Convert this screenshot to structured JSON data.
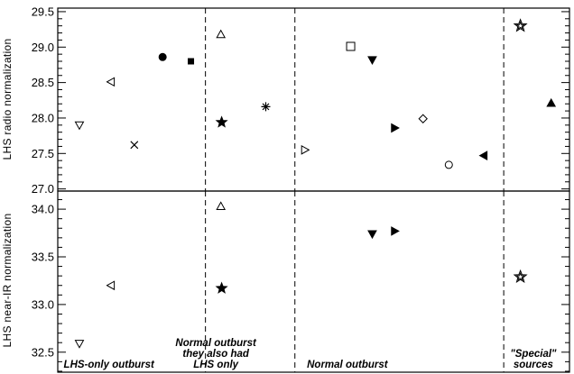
{
  "chart_data": [
    {
      "type": "scatter",
      "ylabel": "LHS radio normalization",
      "ylim": [
        26.97,
        29.55
      ],
      "yticks": [
        27.0,
        27.5,
        28.0,
        28.5,
        29.0,
        29.5
      ],
      "ytick_labels": [
        "27.0",
        "27.5",
        "28.0",
        "28.5",
        "29.0",
        "29.5"
      ],
      "xlim": [
        0,
        1
      ],
      "region_boundaries": [
        0.2886,
        0.4634,
        0.8715
      ],
      "points": [
        {
          "x": 0.0423,
          "y": 27.9,
          "marker": "triangle-down-open"
        },
        {
          "x": 0.1041,
          "y": 28.51,
          "marker": "triangle-left-open"
        },
        {
          "x": 0.1496,
          "y": 27.62,
          "marker": "cross"
        },
        {
          "x": 0.2049,
          "y": 28.86,
          "marker": "circle-filled"
        },
        {
          "x": 0.2602,
          "y": 28.8,
          "marker": "square-filled-small"
        },
        {
          "x": 0.3187,
          "y": 29.18,
          "marker": "triangle-up-open"
        },
        {
          "x": 0.3203,
          "y": 27.94,
          "marker": "star-filled"
        },
        {
          "x": 0.4065,
          "y": 28.16,
          "marker": "asterisk"
        },
        {
          "x": 0.4829,
          "y": 27.55,
          "marker": "triangle-right-open"
        },
        {
          "x": 0.5724,
          "y": 29.01,
          "marker": "square-open"
        },
        {
          "x": 0.6146,
          "y": 28.82,
          "marker": "triangle-down-filled"
        },
        {
          "x": 0.6585,
          "y": 27.86,
          "marker": "triangle-right-filled"
        },
        {
          "x": 0.7138,
          "y": 27.99,
          "marker": "diamond-open"
        },
        {
          "x": 0.7642,
          "y": 27.34,
          "marker": "circle-open"
        },
        {
          "x": 0.8325,
          "y": 27.47,
          "marker": "triangle-left-filled"
        },
        {
          "x": 0.9041,
          "y": 29.3,
          "marker": "star-open"
        },
        {
          "x": 0.9642,
          "y": 28.21,
          "marker": "triangle-up-filled"
        }
      ]
    },
    {
      "type": "scatter",
      "ylabel": "LHS near-IR normalization",
      "ylim": [
        32.29,
        34.19
      ],
      "yticks": [
        32.5,
        33.0,
        33.5,
        34.0
      ],
      "ytick_labels": [
        "32.5",
        "33.0",
        "33.5",
        "34.0"
      ],
      "xlim": [
        0,
        1
      ],
      "region_boundaries": [
        0.2886,
        0.4634,
        0.8715
      ],
      "region_labels": [
        {
          "x_center": 0.1,
          "lines": [
            "LHS-only outburst"
          ]
        },
        {
          "x_center": 0.3089,
          "lines": [
            "Normal outburst",
            "they also had",
            "LHS only"
          ]
        },
        {
          "x_center": 0.5659,
          "lines": [
            "Normal outburst"
          ]
        },
        {
          "x_center": 0.9293,
          "lines": [
            "\"Special\"",
            "sources"
          ]
        }
      ],
      "points": [
        {
          "x": 0.0423,
          "y": 32.59,
          "marker": "triangle-down-open"
        },
        {
          "x": 0.1041,
          "y": 33.2,
          "marker": "triangle-left-open"
        },
        {
          "x": 0.3187,
          "y": 34.03,
          "marker": "triangle-up-open"
        },
        {
          "x": 0.3203,
          "y": 33.17,
          "marker": "star-filled"
        },
        {
          "x": 0.6146,
          "y": 33.74,
          "marker": "triangle-down-filled"
        },
        {
          "x": 0.6585,
          "y": 33.77,
          "marker": "triangle-right-filled"
        },
        {
          "x": 0.9041,
          "y": 33.29,
          "marker": "star-open"
        }
      ]
    }
  ]
}
